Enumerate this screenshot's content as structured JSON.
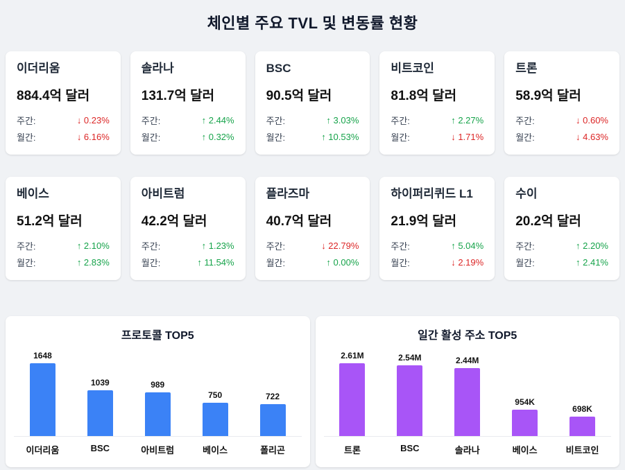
{
  "page": {
    "title": "체인별 주요 TVL 및 변동률 현황"
  },
  "labels": {
    "weekly": "주간:",
    "monthly": "월간:"
  },
  "colors": {
    "up": "#16a34a",
    "down": "#dc2626",
    "protocol_bar": "#3b82f6",
    "address_bar": "#a855f7",
    "background": "#f0f2f5"
  },
  "cards": [
    {
      "name": "이더리움",
      "tvl": "884.4억 달러",
      "weekly": "↓ 0.23%",
      "weekly_dir": "down",
      "monthly": "↓ 6.16%",
      "monthly_dir": "down"
    },
    {
      "name": "솔라나",
      "tvl": "131.7억 달러",
      "weekly": "↑ 2.44%",
      "weekly_dir": "up",
      "monthly": "↑ 0.32%",
      "monthly_dir": "up"
    },
    {
      "name": "BSC",
      "tvl": "90.5억 달러",
      "weekly": "↑ 3.03%",
      "weekly_dir": "up",
      "monthly": "↑ 10.53%",
      "monthly_dir": "up"
    },
    {
      "name": "비트코인",
      "tvl": "81.8억 달러",
      "weekly": "↑ 2.27%",
      "weekly_dir": "up",
      "monthly": "↓ 1.71%",
      "monthly_dir": "down"
    },
    {
      "name": "트론",
      "tvl": "58.9억 달러",
      "weekly": "↓ 0.60%",
      "weekly_dir": "down",
      "monthly": "↓ 4.63%",
      "monthly_dir": "down"
    },
    {
      "name": "베이스",
      "tvl": "51.2억 달러",
      "weekly": "↑ 2.10%",
      "weekly_dir": "up",
      "monthly": "↑ 2.83%",
      "monthly_dir": "up"
    },
    {
      "name": "아비트럼",
      "tvl": "42.2억 달러",
      "weekly": "↑ 1.23%",
      "weekly_dir": "up",
      "monthly": "↑ 11.54%",
      "monthly_dir": "up"
    },
    {
      "name": "플라즈마",
      "tvl": "40.7억 달러",
      "weekly": "↓ 22.79%",
      "weekly_dir": "down",
      "monthly": "↑ 0.00%",
      "monthly_dir": "up"
    },
    {
      "name": "하이퍼리퀴드 L1",
      "tvl": "21.9억 달러",
      "weekly": "↑ 5.04%",
      "weekly_dir": "up",
      "monthly": "↓ 2.19%",
      "monthly_dir": "down"
    },
    {
      "name": "수이",
      "tvl": "20.2억 달러",
      "weekly": "↑ 2.20%",
      "weekly_dir": "up",
      "monthly": "↑ 2.41%",
      "monthly_dir": "up"
    }
  ],
  "chart_data": [
    {
      "type": "bar",
      "title": "프로토콜 TOP5",
      "categories": [
        "이더리움",
        "BSC",
        "아비트럼",
        "베이스",
        "폴리곤"
      ],
      "values": [
        1648,
        1039,
        989,
        750,
        722
      ],
      "value_labels": [
        "1648",
        "1039",
        "989",
        "750",
        "722"
      ],
      "bar_color": "#3b82f6",
      "xlabel": "",
      "ylabel": "",
      "ylim": [
        0,
        1648
      ],
      "grid": false,
      "legend": false
    },
    {
      "type": "bar",
      "title": "일간 활성 주소 TOP5",
      "categories": [
        "트론",
        "BSC",
        "솔라나",
        "베이스",
        "비트코인"
      ],
      "values": [
        2610000,
        2540000,
        2440000,
        954000,
        698000
      ],
      "value_labels": [
        "2.61M",
        "2.54M",
        "2.44M",
        "954K",
        "698K"
      ],
      "bar_color": "#a855f7",
      "xlabel": "",
      "ylabel": "",
      "ylim": [
        0,
        2610000
      ],
      "grid": false,
      "legend": false
    }
  ]
}
